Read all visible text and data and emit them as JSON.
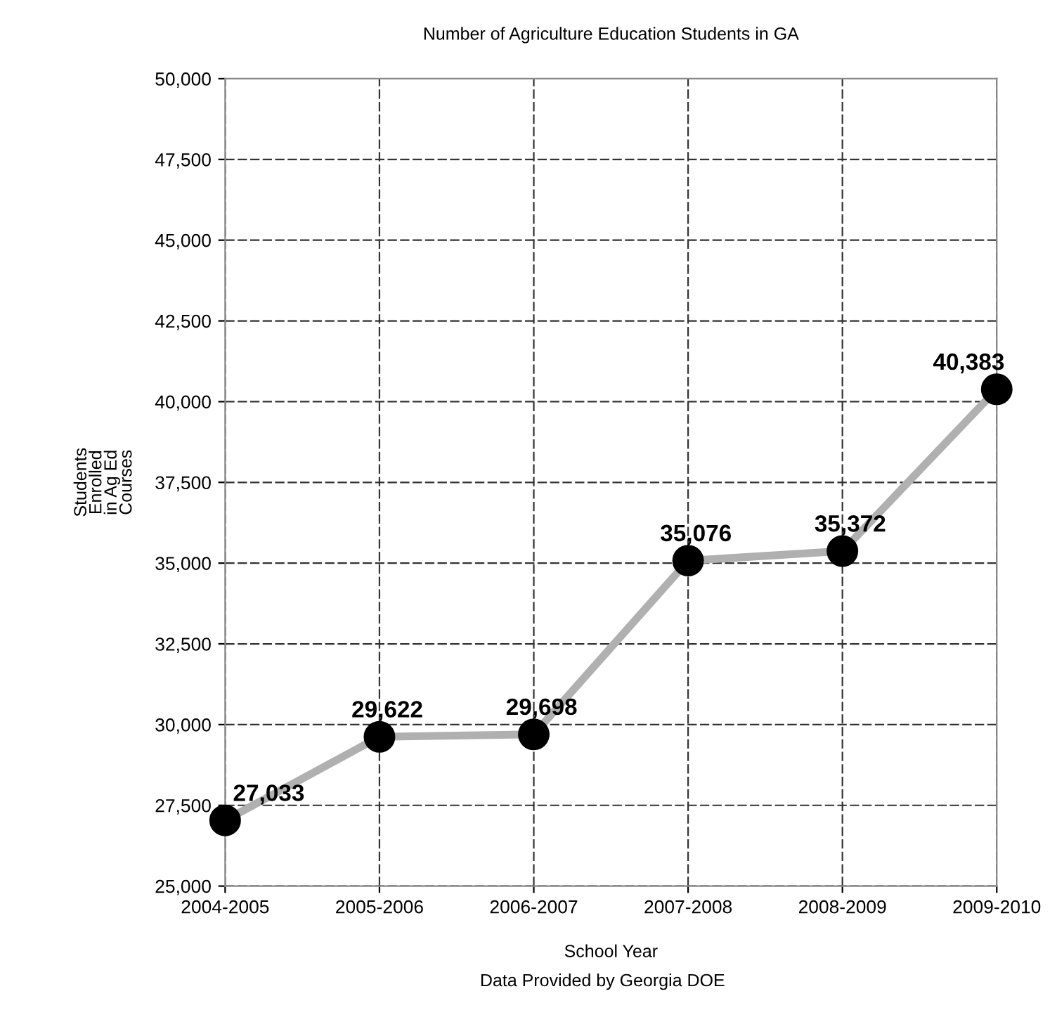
{
  "chart_data": {
    "type": "line",
    "title": "Number of Agriculture Education Students in GA",
    "xlabel": "School Year",
    "ylabel": "Students\nEnrolled\nin Ag Ed\nCourses",
    "annotations": [
      "Data Provided by Georgia DOE"
    ],
    "categories": [
      "2004-2005",
      "2005-2006",
      "2006-2007",
      "2007-2008",
      "2008-2009",
      "2009-2010"
    ],
    "series": [
      {
        "color": "#b0b0b0",
        "values": [
          27033,
          29622,
          29698,
          35076,
          35372,
          40383
        ],
        "value_labels": [
          "27,033",
          "29,622",
          "29,698",
          "35,076",
          "35,372",
          "40,383"
        ]
      }
    ],
    "ylim": [
      25000,
      50000
    ],
    "yticks": [
      {
        "value": 25000,
        "label": "25,000"
      },
      {
        "value": 27500,
        "label": "27,500"
      },
      {
        "value": 30000,
        "label": "30,000"
      },
      {
        "value": 32500,
        "label": "32,500"
      },
      {
        "value": 35000,
        "label": "35,000"
      },
      {
        "value": 37500,
        "label": "37,500"
      },
      {
        "value": 40000,
        "label": "40,000"
      },
      {
        "value": 42500,
        "label": "42,500"
      },
      {
        "value": 45000,
        "label": "45,000"
      },
      {
        "value": 47500,
        "label": "47,500"
      },
      {
        "value": 50000,
        "label": "50,000"
      }
    ],
    "grid": true,
    "marker": "circle",
    "line_style": "solid",
    "legend": false
  }
}
